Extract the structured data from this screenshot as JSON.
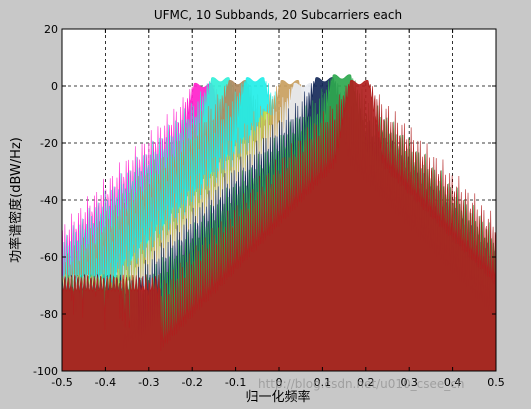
{
  "chart_data": {
    "type": "line",
    "title": "UFMC, 10 Subbands, 20 Subcarriers each",
    "xlabel": "归一化频率",
    "ylabel": "功率谱密度(dBW/Hz)",
    "xlim": [
      -0.5,
      0.5
    ],
    "ylim": [
      -100,
      20
    ],
    "xticks": [
      -0.5,
      -0.4,
      -0.3,
      -0.2,
      -0.1,
      0,
      0.1,
      0.2,
      0.3,
      0.4,
      0.5
    ],
    "xtick_labels": [
      "-0.5",
      "-0.4",
      "-0.3",
      "-0.2",
      "-0.1",
      "0",
      "0.1",
      "0.2",
      "0.3",
      "0.4",
      "0.5"
    ],
    "yticks": [
      -100,
      -80,
      -60,
      -40,
      -20,
      0,
      20
    ],
    "ytick_labels": [
      "-100",
      "-80",
      "-60",
      "-40",
      "-20",
      "0",
      "20"
    ],
    "grid": true,
    "grid_style": "dashed",
    "noise_floor_db": -68,
    "series": [
      {
        "center": -0.175,
        "width": 0.04,
        "peak_db": 1,
        "color": "#ff22cc"
      },
      {
        "center": -0.135,
        "width": 0.04,
        "peak_db": 3,
        "color": "#33f0d8"
      },
      {
        "center": -0.095,
        "width": 0.04,
        "peak_db": 2,
        "color": "#b08a60"
      },
      {
        "center": -0.055,
        "width": 0.04,
        "peak_db": 3,
        "color": "#22eee8"
      },
      {
        "center": -0.015,
        "width": 0.04,
        "peak_db": -9,
        "color": "#c7e046"
      },
      {
        "center": 0.025,
        "width": 0.04,
        "peak_db": 2,
        "color": "#c9a060"
      },
      {
        "center": 0.055,
        "width": 0.04,
        "peak_db": 1,
        "color": "#e8ecf2"
      },
      {
        "center": 0.105,
        "width": 0.04,
        "peak_db": 3,
        "color": "#162a5a"
      },
      {
        "center": 0.145,
        "width": 0.04,
        "peak_db": 4,
        "color": "#2ea84e"
      },
      {
        "center": 0.185,
        "width": 0.04,
        "peak_db": 2,
        "color": "#b01e1e"
      }
    ]
  },
  "watermark": "http://blog.csdn.net/u010_csee_cn"
}
